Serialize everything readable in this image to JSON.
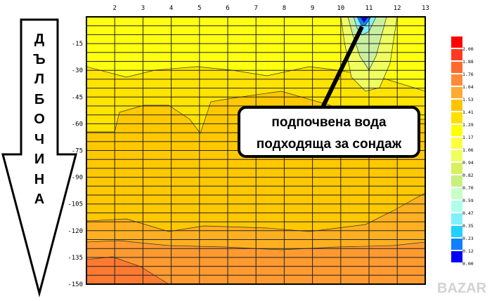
{
  "chart_data": {
    "type": "heatmap",
    "x_ticks": [
      2,
      3,
      4,
      5,
      6,
      7,
      8,
      9,
      10,
      11,
      12,
      13
    ],
    "xlim": [
      1,
      13
    ],
    "y_ticks": [
      -15,
      -30,
      -45,
      -60,
      -75,
      -90,
      -105,
      -120,
      -135,
      -150
    ],
    "ylim": [
      -150,
      0
    ],
    "grid": true,
    "colorbar": {
      "labels": [
        "2.00",
        "1.88",
        "1.76",
        "1.64",
        "1.53",
        "1.41",
        "1.29",
        "1.17",
        "1.06",
        "0.94",
        "0.82",
        "0.70",
        "0.59",
        "0.47",
        "0.35",
        "0.23",
        "0.12",
        "0.00"
      ],
      "colors": [
        "#ff0000",
        "#ff3a20",
        "#ff6a30",
        "#ff8a3a",
        "#ffaa30",
        "#ffc400",
        "#ffe000",
        "#ffff00",
        "#ffff40",
        "#f0ff60",
        "#d8f060",
        "#c8f080",
        "#c8ffc8",
        "#b0ffe8",
        "#80f0ff",
        "#20d0ff",
        "#1080ff",
        "#0000ff"
      ],
      "placement": "right"
    },
    "annotations": {
      "depth_arrow_label": "ДЪЛБОЧИНА",
      "callout_line1": "подпочвена вода",
      "callout_line2": "подходяща за сондаж"
    }
  },
  "watermark": "BAZAR"
}
